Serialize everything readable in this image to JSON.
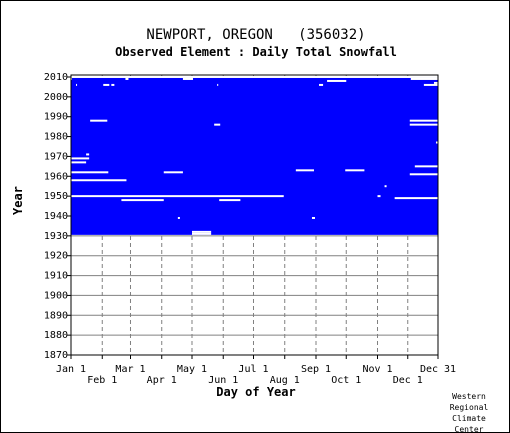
{
  "chart_data": {
    "type": "heatmap",
    "title": "NEWPORT, OREGON   (356032)",
    "subtitle": "Observed Element : Daily Total Snowfall",
    "xlabel": "Day of Year",
    "ylabel": "Year",
    "xlim": [
      1,
      365
    ],
    "ylim": [
      1870,
      2011
    ],
    "grid": true,
    "record_years": [
      1931,
      2010
    ],
    "y_ticks": [
      1870,
      1880,
      1890,
      1900,
      1910,
      1920,
      1930,
      1940,
      1950,
      1960,
      1970,
      1980,
      1990,
      2000,
      2010
    ],
    "x_ticks_top_row": [
      {
        "label": "Jan 1",
        "day": 1
      },
      {
        "label": "Mar 1",
        "day": 60
      },
      {
        "label": "May 1",
        "day": 121
      },
      {
        "label": "Jul 1",
        "day": 182
      },
      {
        "label": "Sep 1",
        "day": 244
      },
      {
        "label": "Nov 1",
        "day": 305
      },
      {
        "label": "Dec 31",
        "day": 365
      }
    ],
    "x_ticks_bottom_row": [
      {
        "label": "Feb 1",
        "day": 32
      },
      {
        "label": "Apr 1",
        "day": 91
      },
      {
        "label": "Jun 1",
        "day": 152
      },
      {
        "label": "Aug 1",
        "day": 213
      },
      {
        "label": "Oct 1",
        "day": 274
      },
      {
        "label": "Dec 1",
        "day": 335
      }
    ],
    "colors": {
      "data_present": "#0000ff",
      "missing": "#ffffff",
      "grid": "#808080"
    },
    "missing_segments": [
      {
        "year": 2010,
        "start": 1,
        "end": 365
      },
      {
        "year": 2009,
        "start": 1,
        "end": 2
      },
      {
        "year": 2009,
        "start": 55,
        "end": 58
      },
      {
        "year": 2009,
        "start": 112,
        "end": 122
      },
      {
        "year": 2009,
        "start": 338,
        "end": 365
      },
      {
        "year": 2008,
        "start": 255,
        "end": 274
      },
      {
        "year": 2007,
        "start": 361,
        "end": 365
      },
      {
        "year": 2006,
        "start": 6,
        "end": 7
      },
      {
        "year": 2006,
        "start": 33,
        "end": 39
      },
      {
        "year": 2006,
        "start": 41,
        "end": 44
      },
      {
        "year": 2006,
        "start": 146,
        "end": 147
      },
      {
        "year": 2006,
        "start": 247,
        "end": 251
      },
      {
        "year": 2006,
        "start": 351,
        "end": 365
      },
      {
        "year": 1988,
        "start": 20,
        "end": 37
      },
      {
        "year": 1988,
        "start": 337,
        "end": 365
      },
      {
        "year": 1986,
        "start": 143,
        "end": 149
      },
      {
        "year": 1986,
        "start": 337,
        "end": 365
      },
      {
        "year": 1977,
        "start": 363,
        "end": 365
      },
      {
        "year": 1971,
        "start": 16,
        "end": 19
      },
      {
        "year": 1969,
        "start": 1,
        "end": 19
      },
      {
        "year": 1967,
        "start": 1,
        "end": 16
      },
      {
        "year": 1965,
        "start": 342,
        "end": 365
      },
      {
        "year": 1963,
        "start": 224,
        "end": 242
      },
      {
        "year": 1963,
        "start": 273,
        "end": 292
      },
      {
        "year": 1962,
        "start": 1,
        "end": 38
      },
      {
        "year": 1962,
        "start": 93,
        "end": 112
      },
      {
        "year": 1961,
        "start": 337,
        "end": 365
      },
      {
        "year": 1958,
        "start": 1,
        "end": 56
      },
      {
        "year": 1955,
        "start": 312,
        "end": 314
      },
      {
        "year": 1950,
        "start": 1,
        "end": 212
      },
      {
        "year": 1950,
        "start": 305,
        "end": 308
      },
      {
        "year": 1949,
        "start": 322,
        "end": 365
      },
      {
        "year": 1948,
        "start": 51,
        "end": 93
      },
      {
        "year": 1948,
        "start": 148,
        "end": 169
      },
      {
        "year": 1939,
        "start": 107,
        "end": 109
      },
      {
        "year": 1939,
        "start": 240,
        "end": 243
      },
      {
        "year": 1932,
        "start": 121,
        "end": 140
      },
      {
        "year": 1931,
        "start": 121,
        "end": 140
      }
    ]
  },
  "credit": {
    "line1": "Western",
    "line2": "Regional",
    "line3": "Climate",
    "line4": "Center"
  }
}
